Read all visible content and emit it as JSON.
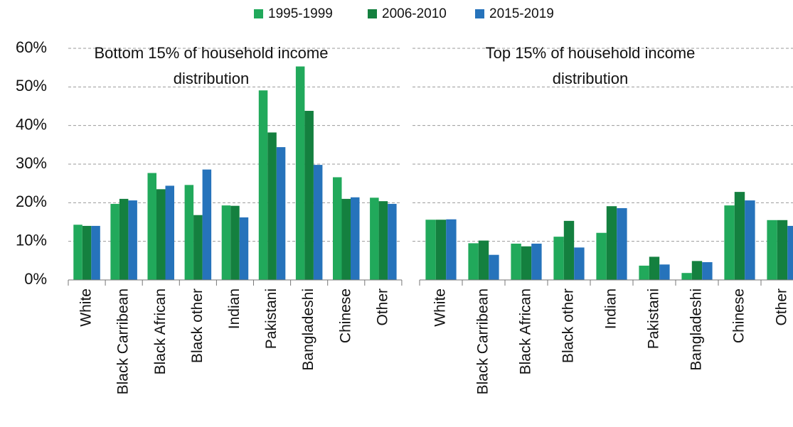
{
  "chart_data": [
    {
      "type": "bar",
      "title": [
        "Bottom 15% of household income",
        "distribution"
      ],
      "categories": [
        "White",
        "Black Carribean",
        "Black African",
        "Black other",
        "Indian",
        "Pakistani",
        "Bangladeshi",
        "Chinese",
        "Other"
      ],
      "series": [
        {
          "name": "1995-1999",
          "color": "#21a95b",
          "values": [
            14.3,
            19.7,
            27.7,
            24.6,
            19.3,
            49.1,
            55.3,
            26.6,
            21.3
          ]
        },
        {
          "name": "2006-2010",
          "color": "#14803f",
          "values": [
            14,
            21,
            23.5,
            16.8,
            19.2,
            38.2,
            43.8,
            21,
            20.4
          ]
        },
        {
          "name": "2015-2019",
          "color": "#2673bb",
          "values": [
            14,
            20.6,
            24.4,
            28.6,
            16.2,
            34.4,
            29.8,
            21.4,
            19.7
          ]
        }
      ],
      "ylim": [
        0,
        60
      ],
      "yticks": [
        {
          "value": 0,
          "label": "0%"
        },
        {
          "value": 10,
          "label": "10%"
        },
        {
          "value": 20,
          "label": "20%"
        },
        {
          "value": 30,
          "label": "30%"
        },
        {
          "value": 40,
          "label": "40%"
        },
        {
          "value": 50,
          "label": "50%"
        },
        {
          "value": 60,
          "label": "60%"
        }
      ],
      "grid": true
    },
    {
      "type": "bar",
      "title": [
        "Top 15% of household income",
        "distribution"
      ],
      "categories": [
        "White",
        "Black Carribean",
        "Black African",
        "Black other",
        "Indian",
        "Pakistani",
        "Bangladeshi",
        "Chinese",
        "Other"
      ],
      "series": [
        {
          "name": "1995-1999",
          "color": "#21a95b",
          "values": [
            15.6,
            9.5,
            9.4,
            11.2,
            12.2,
            3.7,
            1.8,
            19.3,
            15.5
          ]
        },
        {
          "name": "2006-2010",
          "color": "#14803f",
          "values": [
            15.6,
            10.2,
            8.7,
            15.3,
            19.1,
            6,
            4.9,
            22.8,
            15.5
          ]
        },
        {
          "name": "2015-2019",
          "color": "#2673bb",
          "values": [
            15.7,
            6.5,
            9.4,
            8.4,
            18.6,
            4,
            4.6,
            20.6,
            14
          ]
        }
      ],
      "ylim": [
        0,
        60
      ],
      "yticks": [
        0,
        10,
        20,
        30,
        40,
        50,
        60
      ],
      "grid": true
    }
  ]
}
